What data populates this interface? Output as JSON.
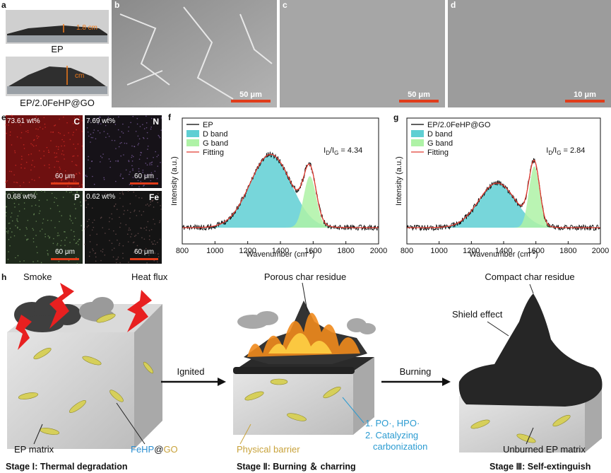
{
  "panel_a": {
    "label": "a",
    "caption_1": "EP",
    "measure_1": "1.8 cm",
    "caption_2": "EP/2.0FeHP@GO",
    "measure_2": "cm"
  },
  "panel_b": {
    "label": "b",
    "scale": "50 μm"
  },
  "panel_c": {
    "label": "c",
    "scale": "50 μm"
  },
  "panel_d": {
    "label": "d",
    "scale": "10 μm"
  },
  "panel_e": {
    "label": "e",
    "maps": [
      {
        "wt": "73.61 wt%",
        "element": "C",
        "scale": "60 μm"
      },
      {
        "wt": "7.69 wt%",
        "element": "N",
        "scale": "60 μm"
      },
      {
        "wt": "0.68 wt%",
        "element": "P",
        "scale": "60 μm"
      },
      {
        "wt": "0.62 wt%",
        "element": "Fe",
        "scale": "60 μm"
      }
    ]
  },
  "chart_data": [
    {
      "type": "line",
      "label": "f",
      "ylabel": "Intensity (a.u.)",
      "xlabel": "Wavenumber (cm",
      "xlabel_sup": "-1",
      "xlabel_end": ")",
      "series": [
        {
          "name": "EP",
          "color": "#000000"
        },
        {
          "name": "D band",
          "color": "#5fcfd3"
        },
        {
          "name": "G band",
          "color": "#aef2a6"
        },
        {
          "name": "Fitting",
          "color": "#e03c31"
        }
      ],
      "ratio": {
        "i": "I",
        "d": "D",
        "mid": "/I",
        "g": "G",
        "value": " = 4.34"
      },
      "xlim": [
        800,
        2000
      ],
      "xticks": [
        800,
        1000,
        1200,
        1400,
        1600,
        1800,
        2000
      ]
    },
    {
      "type": "line",
      "label": "g",
      "ylabel": "Intensity (a.u.)",
      "xlabel": "Wavenumber (cm",
      "xlabel_sup": "-1",
      "xlabel_end": ")",
      "series": [
        {
          "name": "EP/2.0FeHP@GO",
          "color": "#000000"
        },
        {
          "name": "D band",
          "color": "#5fcfd3"
        },
        {
          "name": "G band",
          "color": "#aef2a6"
        },
        {
          "name": "Fitting",
          "color": "#e03c31"
        }
      ],
      "ratio": {
        "i": "I",
        "d": "D",
        "mid": "/I",
        "g": "G",
        "value": " = 2.84"
      },
      "xlim": [
        800,
        2000
      ],
      "xticks": [
        800,
        1000,
        1200,
        1400,
        1600,
        1800,
        2000
      ]
    }
  ],
  "panel_h": {
    "label": "h",
    "smoke": "Smoke",
    "heat_flux": "Heat flux",
    "ignited": "Ignited",
    "porous": "Porous char residue",
    "burning": "Burning",
    "compact": "Compact char residue",
    "shield": "Shield effect",
    "ep_matrix": "EP matrix",
    "fehp": "FeHP",
    "at": "@",
    "go": "GO",
    "physical_barrier": "Physical barrier",
    "mech_1": "1. PO·, HPO·",
    "mech_2a": "2. Catalyzing",
    "mech_2b": "carbonization",
    "unburned": "Unburned EP matrix",
    "stage_1": "Stage Ⅰ: Thermal degradation",
    "stage_2": "Stage Ⅱ: Burning ＆ charring",
    "stage_3": "Stage Ⅲ: Self-extinguish"
  }
}
